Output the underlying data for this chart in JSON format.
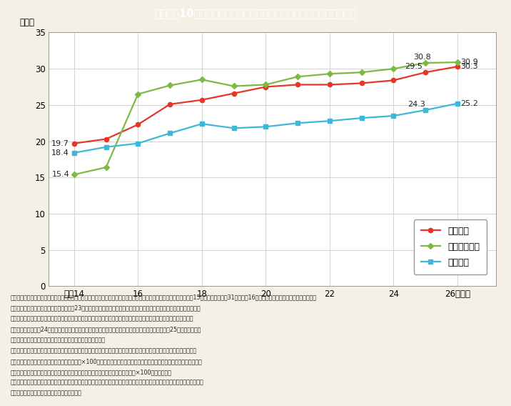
{
  "title": "Ｉ－１－10図　地方公共団体の寡議会等における女性委員割合の推移",
  "title_bg_color": "#3db8d8",
  "title_text_color": "#ffffff",
  "bg_color": "#f5f0e6",
  "plot_bg_color": "#ffffff",
  "ylabel": "（％）",
  "ylim": [
    0,
    35
  ],
  "yticks": [
    0,
    5,
    10,
    15,
    20,
    25,
    30,
    35
  ],
  "x_years": [
    14,
    15,
    16,
    17,
    18,
    19,
    20,
    21,
    22,
    23,
    24,
    25,
    26
  ],
  "xticks": [
    14,
    16,
    18,
    20,
    22,
    24,
    26
  ],
  "series": [
    {
      "label": "都道府県",
      "color": "#e8352a",
      "marker": "o",
      "data": [
        19.7,
        20.3,
        22.3,
        25.1,
        25.7,
        26.6,
        27.5,
        27.8,
        27.8,
        28.0,
        28.4,
        29.5,
        30.3
      ]
    },
    {
      "label": "政令指定都市",
      "color": "#7dba44",
      "marker": "D",
      "data": [
        15.4,
        16.4,
        26.5,
        27.7,
        28.5,
        27.6,
        27.8,
        28.9,
        29.3,
        29.5,
        30.0,
        30.8,
        30.9
      ]
    },
    {
      "label": "市区町村",
      "color": "#3db8d8",
      "marker": "s",
      "data": [
        18.4,
        19.2,
        19.7,
        21.1,
        22.4,
        21.8,
        22.0,
        22.5,
        22.8,
        23.2,
        23.5,
        24.3,
        25.2
      ]
    }
  ],
  "notes": [
    "（備考）１．内閣府「地方公共団体における男女共同参画社会の形成又は女性に関する施策の推進状況」より作成。平成15年までは各年３朎31日現在。16年以降は原則として各年４朎１日現在。",
    "　　２．東日本大震災の影響により，平成23年の数値には，岩手県の一部（花巻市，陸前高田市，釜石市，大槌町），宮城",
    "　　　県の一部（女川町，南三陸町），福島県の一部（南相馬市，下郷町，楔葉町，富岡町，大熊町，双葉町，浪江町，",
    "　　　飯館村）が，24年の数値には，福島県の一部（川内村，大熊町，浪江町，葛尾村，飯館村）が，25年の数値には，",
    "　　　福島県の一部（浪江町）が，それぞれ含まれていない。",
    "　　３．都道府県及び政令指定都市については，「法律又は政令により置かなければならない寡議会等における女性の寡議",
    "　　　会等委員数」／「寡議会等委員の総数」×100により算出。市区町村については，「法律，政令及び条例により設置",
    "　　　された寡議会等における女性の寡議会等委員数」／「寡議会等委員の総数」×100により算出。",
    "　　４．調査の対象となっている寡議会は，法律又は政令及び条例により設置された寡議会等のうち，内閣府が把握したもの。",
    "　　５．市区町村には，政令指定都市を含む。"
  ]
}
